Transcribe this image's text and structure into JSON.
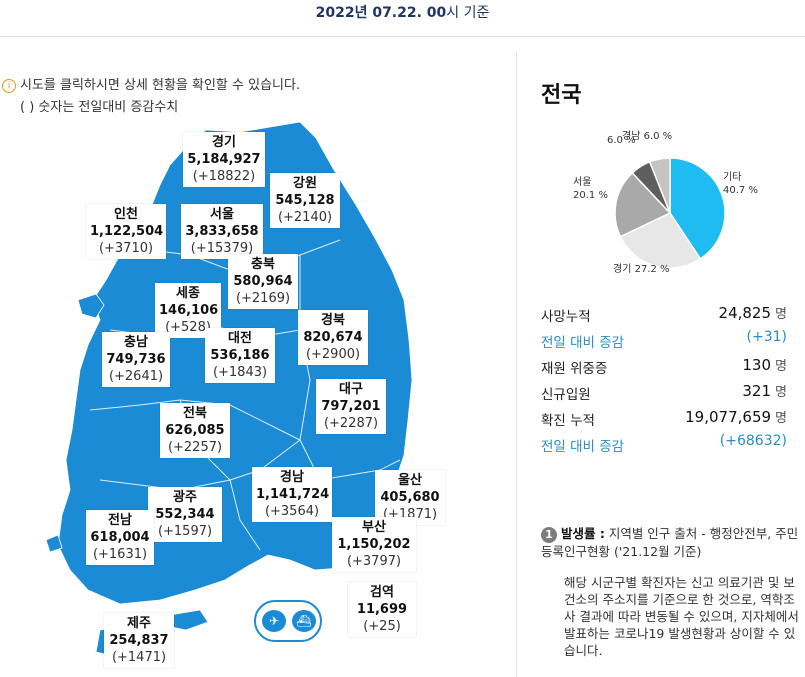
{
  "header": {
    "date_bold": "2022년 07.22. 00",
    "date_rest": "시 기준"
  },
  "notice": {
    "line1": "시도를 클릭하시면 상세 현황을 확인할 수 있습니다.",
    "line2": "( ) 숫자는 전일대비 증감수치"
  },
  "regions": {
    "gyeonggi": {
      "name": "경기",
      "count": "5,184,927",
      "inc": "(+18822)"
    },
    "gangwon": {
      "name": "강원",
      "count": "545,128",
      "inc": "(+2140)"
    },
    "incheon": {
      "name": "인천",
      "count": "1,122,504",
      "inc": "(+3710)"
    },
    "seoul": {
      "name": "서울",
      "count": "3,833,658",
      "inc": "(+15379)"
    },
    "chungbuk": {
      "name": "충북",
      "count": "580,964",
      "inc": "(+2169)"
    },
    "sejong": {
      "name": "세종",
      "count": "146,106",
      "inc": "(+528)"
    },
    "gyeongbuk": {
      "name": "경북",
      "count": "820,674",
      "inc": "(+2900)"
    },
    "chungnam": {
      "name": "충남",
      "count": "749,736",
      "inc": "(+2641)"
    },
    "daejeon": {
      "name": "대전",
      "count": "536,186",
      "inc": "(+1843)"
    },
    "daegu": {
      "name": "대구",
      "count": "797,201",
      "inc": "(+2287)"
    },
    "jeonbuk": {
      "name": "전북",
      "count": "626,085",
      "inc": "(+2257)"
    },
    "gyeongnam": {
      "name": "경남",
      "count": "1,141,724",
      "inc": "(+3564)"
    },
    "ulsan": {
      "name": "울산",
      "count": "405,680",
      "inc": "(+1871)"
    },
    "gwangju": {
      "name": "광주",
      "count": "552,344",
      "inc": "(+1597)"
    },
    "jeonnam": {
      "name": "전남",
      "count": "618,004",
      "inc": "(+1631)"
    },
    "busan": {
      "name": "부산",
      "count": "1,150,202",
      "inc": "(+3797)"
    },
    "jeju": {
      "name": "제주",
      "count": "254,837",
      "inc": "(+1471)"
    },
    "quarantine": {
      "name": "검역",
      "count": "11,699",
      "inc": "(+25)"
    }
  },
  "transport_icons": [
    "airplane-icon",
    "ship-icon"
  ],
  "panel": {
    "title": "전국"
  },
  "chart_data": {
    "type": "pie",
    "slices": [
      {
        "label": "기타",
        "value": 40.7,
        "text": "40.7 %",
        "color": "#1fbcf2"
      },
      {
        "label": "경기",
        "value": 27.2,
        "text": "27.2 %",
        "color": "#e7e7e7"
      },
      {
        "label": "서울",
        "value": 20.1,
        "text": "20.1 %",
        "color": "#a9a9a9"
      },
      {
        "label": "",
        "value": 6.0,
        "text": "6.0 %",
        "color": "#5e5e5e"
      },
      {
        "label": "경남",
        "value": 6.0,
        "text": "6.0 %",
        "color": "#c4c4c4"
      }
    ]
  },
  "stats": [
    {
      "label": "사망누적",
      "value": "24,825",
      "unit": "명",
      "blue": false
    },
    {
      "label": "전일 대비 증감",
      "value": "(+31)",
      "unit": "",
      "blue": true
    },
    {
      "label": "재원 위중증",
      "value": "130",
      "unit": "명",
      "blue": false
    },
    {
      "label": "신규입원",
      "value": "321",
      "unit": "명",
      "blue": false
    },
    {
      "label": "확진 누적",
      "value": "19,077,659",
      "unit": "명",
      "blue": false
    },
    {
      "label": "전일 대비 증감",
      "value": "(+68632)",
      "unit": "",
      "blue": true
    }
  ],
  "note": {
    "badge": "1",
    "head": "발생률 :",
    "text1": " 지역별 인구 출처 - 행정안전부, 주민등록인구현황 ('21.12월 기준)",
    "text2": "해당 시군구별 확진자는 신고 의료기관 및 보건소의 주소지를 기준으로 한 것으로, 역학조사 결과에 따라 변동될 수 있으며, 지자체에서 발표하는 코로나19 발생현황과 상이할 수 있습니다."
  },
  "colors": {
    "map": "#1a8bd4",
    "accent_blue": "#2b8cc4",
    "title_navy": "#1f3566"
  }
}
